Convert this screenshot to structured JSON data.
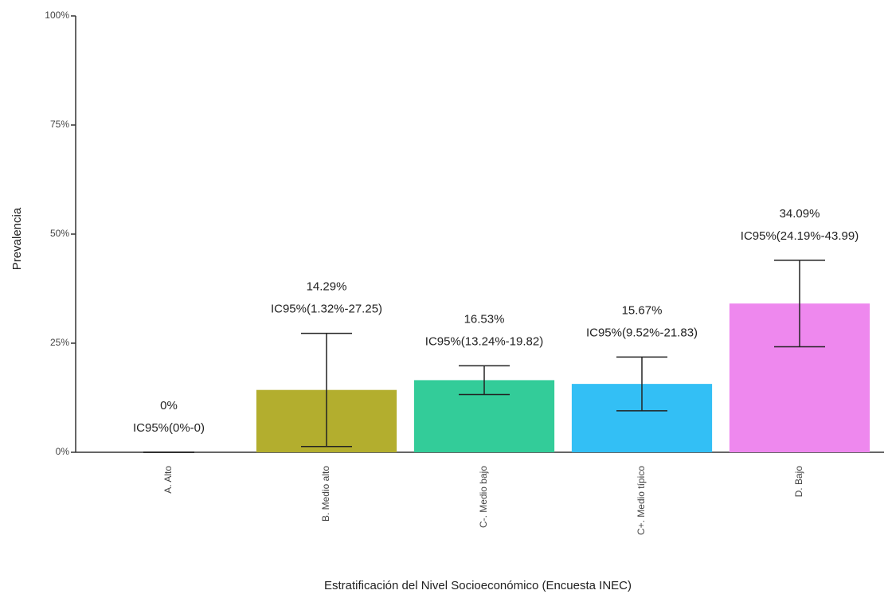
{
  "chart_data": {
    "type": "bar",
    "y_label": "Prevalencia",
    "x_label": "Estratificación del Nivel Socioeconómico (Encuesta INEC)",
    "categories": [
      "A. Alto",
      "B. Medio alto",
      "C-. Medio bajo",
      "C+. Medio típico",
      "D. Bajo"
    ],
    "values": [
      0,
      14.29,
      16.53,
      15.67,
      34.09
    ],
    "value_labels": [
      "0%",
      "14.29%",
      "16.53%",
      "15.67%",
      "34.09%"
    ],
    "lower": [
      0,
      1.32,
      13.24,
      9.52,
      24.19
    ],
    "upper": [
      0,
      27.25,
      19.82,
      21.83,
      43.99
    ],
    "ci_labels": [
      "IC95%(0%-0)",
      "IC95%(1.32%-27.25)",
      "IC95%(13.24%-19.82)",
      "IC95%(9.52%-21.83)",
      "IC95%(24.19%-43.99)"
    ],
    "colors": [
      "#9e9e9e",
      "#b3ae2e",
      "#33cc99",
      "#33bff5",
      "#ee88ee"
    ],
    "ylim": [
      0,
      100
    ],
    "yticks": [
      {
        "value": 0,
        "label": "0%"
      },
      {
        "value": 25,
        "label": "25%"
      },
      {
        "value": 50,
        "label": "50%"
      },
      {
        "value": 75,
        "label": "75%"
      },
      {
        "value": 100,
        "label": "100%"
      }
    ],
    "grid": false
  }
}
